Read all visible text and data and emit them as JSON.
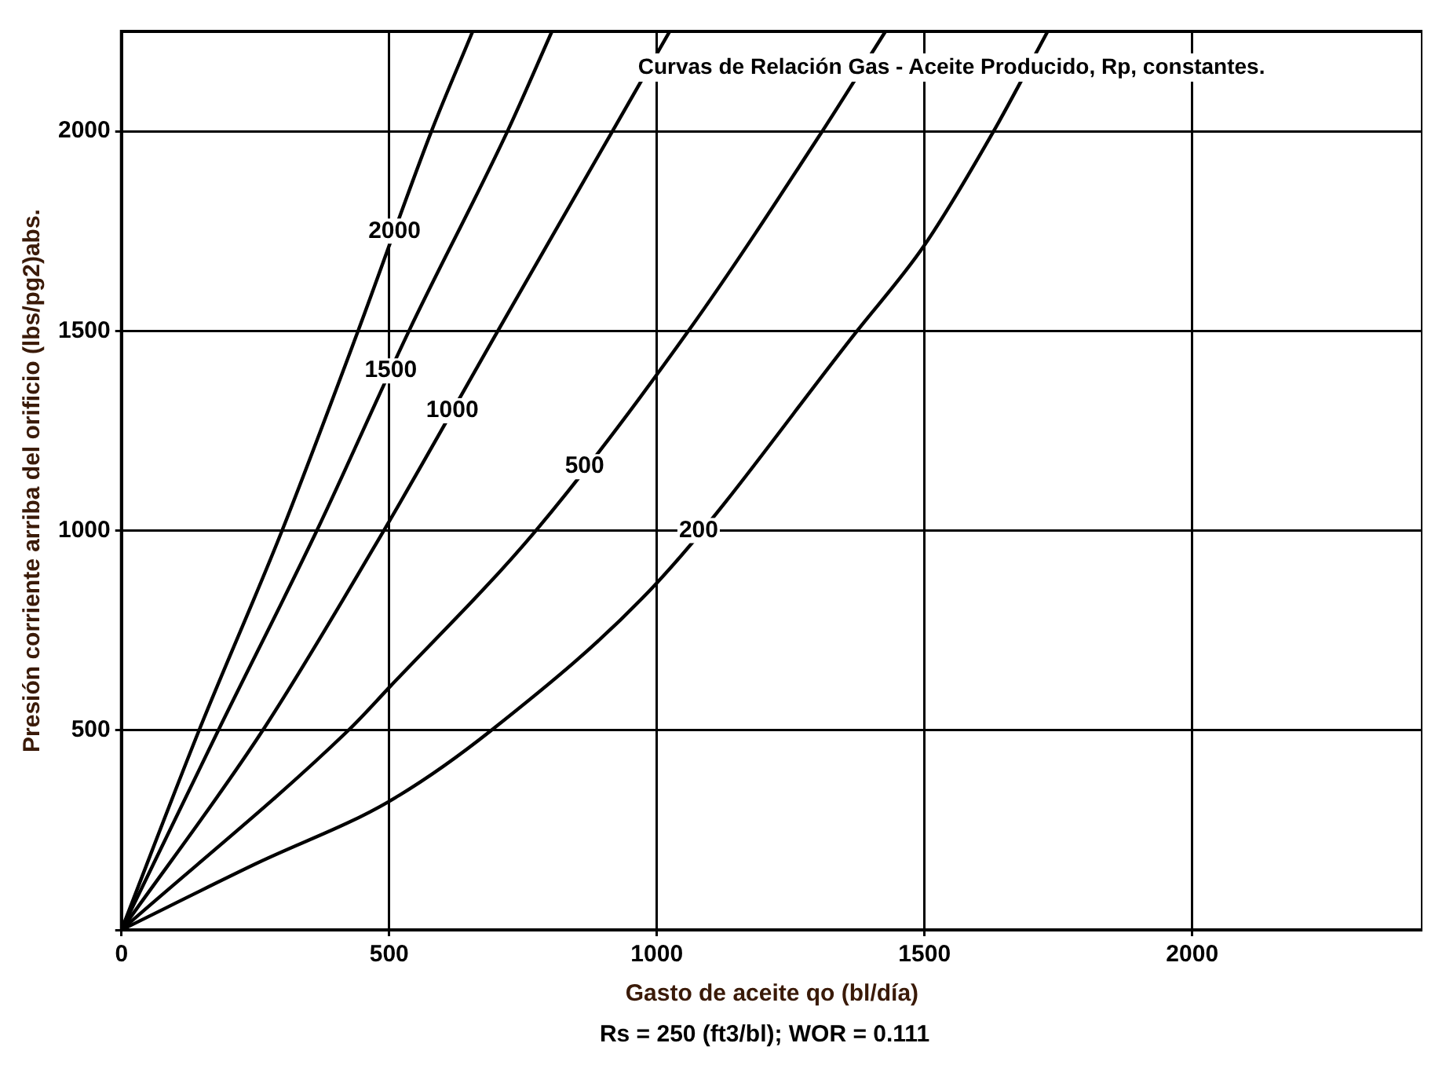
{
  "chart_data": {
    "type": "line",
    "xlabel": "Gasto de aceite qo (bl/día)",
    "ylabel": "Presión corriente arriba del orificio (lbs/pg2)abs.",
    "xlim": [
      0,
      2430
    ],
    "ylim": [
      0,
      2250
    ],
    "xticks": [
      0,
      500,
      1000,
      1500,
      2000
    ],
    "yticks": [
      {
        "value": 0,
        "label": null
      },
      500,
      1000,
      1500,
      2000
    ],
    "grid": true,
    "marker": "none",
    "line_style": "solid",
    "series": [
      {
        "color": "#000000",
        "x": [
          0,
          145,
          300,
          442,
          579,
          656
        ],
        "values": [
          0,
          500,
          1000,
          1500,
          2000,
          2250
        ]
      },
      {
        "color": "#000000",
        "x": [
          0,
          181,
          365,
          537,
          721,
          804
        ],
        "values": [
          0,
          500,
          1000,
          1500,
          2000,
          2250
        ]
      },
      {
        "color": "#000000",
        "x": [
          0,
          264,
          490,
          703,
          917,
          1024
        ],
        "values": [
          0,
          500,
          1000,
          1500,
          2000,
          2250
        ]
      },
      {
        "color": "#000000",
        "x": [
          0,
          424,
          500,
          774,
          1059,
          1309,
          1427
        ],
        "values": [
          0,
          500,
          607,
          1000,
          1500,
          2000,
          2250
        ]
      },
      {
        "color": "#000000",
        "x": [
          0,
          250,
          500,
          691,
          1000,
          1374,
          1500,
          1629,
          1730
        ],
        "values": [
          0,
          165,
          322,
          500,
          869,
          1500,
          1715,
          2000,
          2250
        ]
      }
    ],
    "annotations": [
      "Curvas de Relación Gas - Aceite Producido, Rp, constantes.",
      {
        "text": "2000",
        "x": 510,
        "y": 1750
      },
      {
        "text": "1500",
        "x": 503,
        "y": 1400
      },
      {
        "text": "1000",
        "x": 618,
        "y": 1300
      },
      {
        "text": "500",
        "x": 865,
        "y": 1160
      },
      {
        "text": "200",
        "x": 1078,
        "y": 1000
      },
      "Rs = 250  (ft3/bl);  WOR = 0.111"
    ]
  }
}
